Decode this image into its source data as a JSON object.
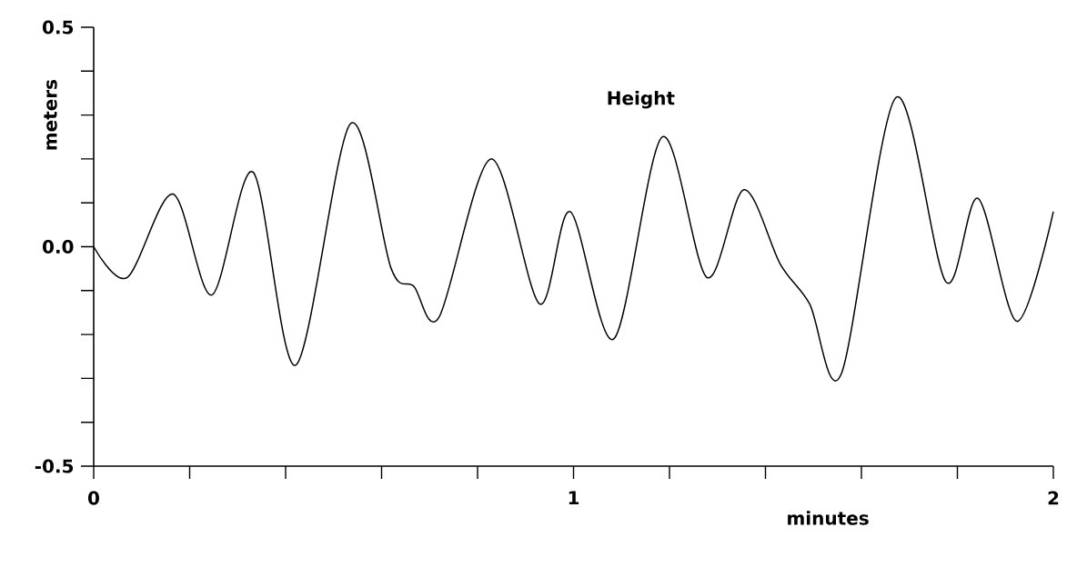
{
  "chart_data": {
    "type": "line",
    "xlabel": "minutes",
    "ylabel": "meters",
    "annotations": [
      "Height"
    ],
    "x": [
      0,
      0.07,
      0.165,
      0.246,
      0.332,
      0.421,
      0.535,
      0.62,
      0.667,
      0.72,
      0.828,
      0.929,
      0.993,
      1.084,
      1.185,
      1.278,
      1.355,
      1.431,
      1.492,
      1.558,
      1.672,
      1.776,
      1.843,
      1.924,
      2.0
    ],
    "series": [
      {
        "color": "#000000",
        "values": [
          0,
          -0.07,
          0.12,
          -0.11,
          0.17,
          -0.27,
          0.28,
          -0.05,
          -0.09,
          -0.16,
          0.2,
          -0.13,
          0.08,
          -0.21,
          0.25,
          -0.07,
          0.13,
          -0.04,
          -0.13,
          -0.29,
          0.34,
          -0.08,
          0.11,
          -0.17,
          0.08
        ]
      }
    ],
    "xlim": [
      0,
      2
    ],
    "xticks": [
      0,
      {
        "value": 0.2,
        "label": null
      },
      {
        "value": 0.4,
        "label": null
      },
      {
        "value": 0.6,
        "label": null
      },
      {
        "value": 0.8,
        "label": null
      },
      1,
      {
        "value": 1.2,
        "label": null
      },
      {
        "value": 1.4,
        "label": null
      },
      {
        "value": 1.6,
        "label": null
      },
      {
        "value": 1.8,
        "label": null
      },
      2
    ],
    "ylim": [
      -0.5,
      0.5
    ],
    "yticks": [
      {
        "value": -0.5,
        "label": "-0.5"
      },
      {
        "value": -0.4,
        "label": null
      },
      {
        "value": -0.3,
        "label": null
      },
      {
        "value": -0.2,
        "label": null
      },
      {
        "value": -0.1,
        "label": null
      },
      {
        "value": 0,
        "label": "0.0"
      },
      {
        "value": 0.1,
        "label": null
      },
      {
        "value": 0.2,
        "label": null
      },
      {
        "value": 0.3,
        "label": null
      },
      {
        "value": 0.4,
        "label": null
      },
      {
        "value": 0.5,
        "label": "0.5"
      }
    ],
    "marker": "none",
    "line_style": "solid"
  }
}
